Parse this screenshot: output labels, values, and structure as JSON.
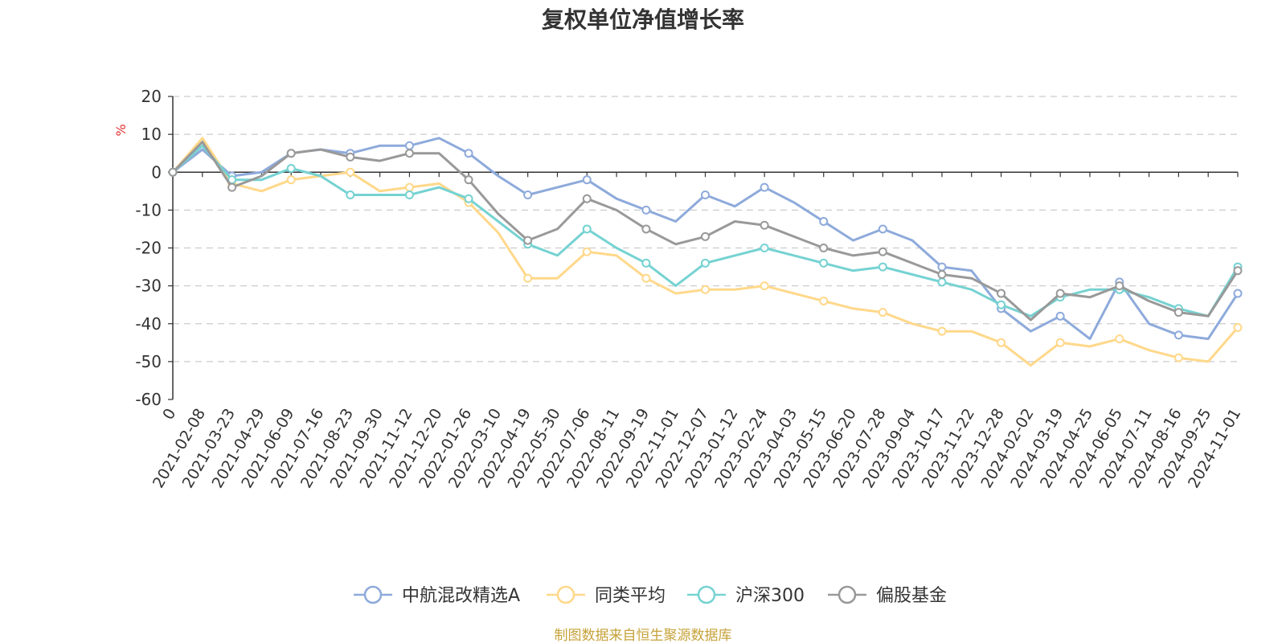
{
  "chart_data": {
    "type": "line",
    "title": "复权单位净值增长率",
    "ylabel": "%",
    "ylim": [
      -60,
      20
    ],
    "yticks": [
      20,
      10,
      0,
      -10,
      -20,
      -30,
      -40,
      -50,
      -60
    ],
    "grid": true,
    "legend_position": "bottom",
    "x": [
      "0",
      "2021-02-08",
      "2021-03-23",
      "2021-04-29",
      "2021-06-09",
      "2021-07-16",
      "2021-08-23",
      "2021-09-30",
      "2021-11-12",
      "2021-12-20",
      "2022-01-26",
      "2022-03-10",
      "2022-04-19",
      "2022-05-30",
      "2022-07-06",
      "2022-08-11",
      "2022-09-19",
      "2022-11-01",
      "2022-12-07",
      "2023-01-12",
      "2023-02-24",
      "2023-04-03",
      "2023-05-15",
      "2023-06-20",
      "2023-07-28",
      "2023-09-04",
      "2023-10-17",
      "2023-11-22",
      "2023-12-28",
      "2024-02-02",
      "2024-03-19",
      "2024-04-25",
      "2024-06-05",
      "2024-07-11",
      "2024-08-16",
      "2024-09-25",
      "2024-11-01"
    ],
    "series": [
      {
        "name": "中航混改精选A",
        "color": "#8eaadb",
        "values": [
          0,
          6,
          -1,
          0,
          5,
          6,
          5,
          7,
          7,
          9,
          5,
          -1,
          -6,
          -4,
          -2,
          -7,
          -10,
          -13,
          -6,
          -9,
          -4,
          -8,
          -13,
          -18,
          -15,
          -18,
          -25,
          -26,
          -36,
          -42,
          -38,
          -44,
          -29,
          -40,
          -43,
          -44,
          -32
        ]
      },
      {
        "name": "同类平均",
        "color": "#ffd88a",
        "values": [
          0,
          9,
          -3,
          -5,
          -2,
          -1,
          0,
          -5,
          -4,
          -3,
          -8,
          -16,
          -28,
          -28,
          -21,
          -22,
          -28,
          -32,
          -31,
          -31,
          -30,
          -32,
          -34,
          -36,
          -37,
          -40,
          -42,
          -42,
          -45,
          -51,
          -45,
          -46,
          -44,
          -47,
          -49,
          -50,
          -41
        ]
      },
      {
        "name": "沪深300",
        "color": "#76d2d2",
        "values": [
          0,
          7,
          -2,
          -2,
          1,
          -1,
          -6,
          -6,
          -6,
          -4,
          -7,
          -13,
          -19,
          -22,
          -15,
          -20,
          -24,
          -30,
          -24,
          -22,
          -20,
          -22,
          -24,
          -26,
          -25,
          -27,
          -29,
          -31,
          -35,
          -38,
          -33,
          -31,
          -31,
          -33,
          -36,
          -38,
          -25
        ]
      },
      {
        "name": "偏股基金",
        "color": "#999999",
        "values": [
          0,
          8,
          -4,
          -1,
          5,
          6,
          4,
          3,
          5,
          5,
          -2,
          -11,
          -18,
          -15,
          -7,
          -10,
          -15,
          -19,
          -17,
          -13,
          -14,
          -17,
          -20,
          -22,
          -21,
          -24,
          -27,
          -28,
          -32,
          -39,
          -32,
          -33,
          -30,
          -34,
          -37,
          -38,
          -26
        ]
      }
    ]
  },
  "legend": {
    "items": [
      "中航混改精选A",
      "同类平均",
      "沪深300",
      "偏股基金"
    ]
  },
  "footer": {
    "source": "制图数据来自恒生聚源数据库",
    "source_color": "#c6a23a"
  },
  "unit_color": "#e03030"
}
